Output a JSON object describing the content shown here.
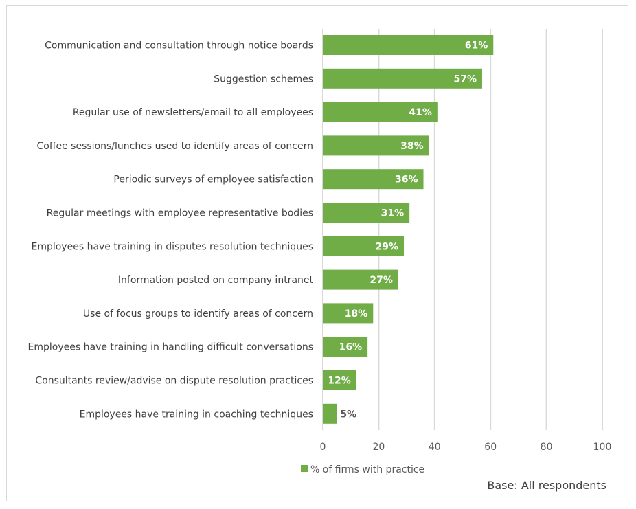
{
  "chart_data": {
    "type": "bar",
    "orientation": "horizontal",
    "categories": [
      "Communication and consultation through notice boards",
      "Suggestion schemes",
      "Regular use of newsletters/email to all employees",
      "Coffee sessions/lunches used to identify areas of concern",
      "Periodic surveys of employee satisfaction",
      "Regular meetings with employee representative bodies",
      "Employees have training in disputes resolution techniques",
      "Information posted on company intranet",
      "Use of focus groups to identify areas of concern",
      "Employees have training in handling difficult conversations",
      "Consultants review/advise on  dispute resolution practices",
      "Employees have training in coaching techniques"
    ],
    "series": [
      {
        "name": "% of firms with practice",
        "values": [
          61,
          57,
          41,
          38,
          36,
          31,
          29,
          27,
          18,
          16,
          12,
          5
        ],
        "color": "#70AD47"
      }
    ],
    "data_labels": [
      "61%",
      "57%",
      "41%",
      "38%",
      "36%",
      "31%",
      "29%",
      "27%",
      "18%",
      "16%",
      "12%",
      "5%"
    ],
    "xlim": [
      0,
      100
    ],
    "xticks": [
      "0",
      "20",
      "40",
      "60",
      "80",
      "100"
    ],
    "grid": true,
    "legend_position": "bottom",
    "footnote": "Base: All respondents"
  }
}
